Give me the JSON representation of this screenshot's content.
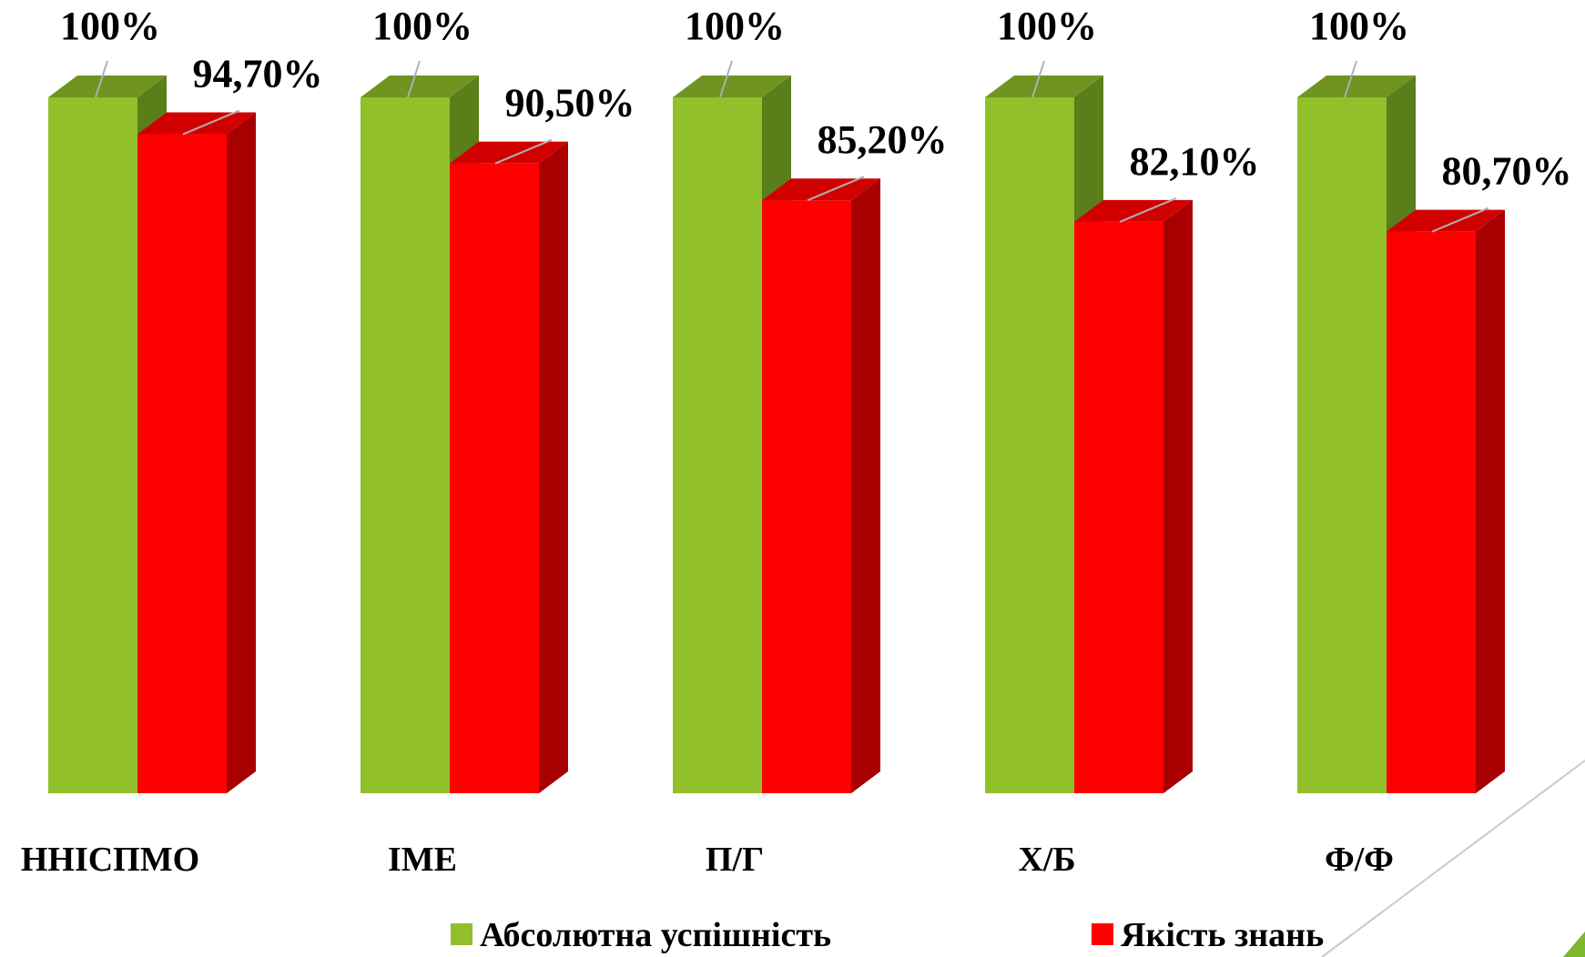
{
  "chart_data": {
    "type": "bar",
    "style": "3d-clustered-column",
    "categories": [
      "ННІСПМО",
      "ІМЕ",
      "П/Г",
      "Х/Б",
      "Ф/Ф"
    ],
    "series": [
      {
        "name": "Абсолютна успішність",
        "values": [
          100,
          100,
          100,
          100,
          100
        ],
        "labels": [
          "100%",
          "100%",
          "100%",
          "100%",
          "100%"
        ],
        "color": "#92c02a",
        "top_color": "#6f9420",
        "side_color": "#5a7e1a"
      },
      {
        "name": "Якість знань",
        "values": [
          94.7,
          90.5,
          85.2,
          82.1,
          80.7
        ],
        "labels": [
          "94,70%",
          "90,50%",
          "85,20%",
          "82,10%",
          "80,70%"
        ],
        "color": "#ff0000",
        "top_color": "#d10000",
        "side_color": "#a80000"
      }
    ],
    "ylim": [
      0,
      100
    ],
    "grid": false,
    "legend_position": "bottom"
  }
}
